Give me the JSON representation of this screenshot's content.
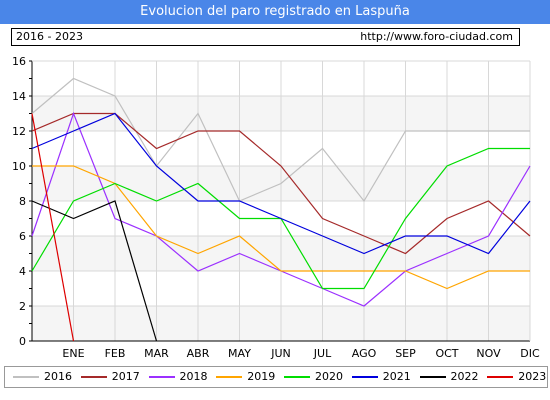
{
  "header": {
    "title": "Evolucion del paro registrado en Laspuña",
    "range": "2016 - 2023",
    "url": "http://www.foro-ciudad.com"
  },
  "chart_data": {
    "type": "line",
    "title": "Evolucion del paro registrado en Laspuña",
    "xlabel": "",
    "ylabel": "",
    "categories": [
      "",
      "ENE",
      "FEB",
      "MAR",
      "ABR",
      "MAY",
      "JUN",
      "JUL",
      "AGO",
      "SEP",
      "OCT",
      "NOV",
      "DIC"
    ],
    "y_ticks": [
      0,
      2,
      4,
      6,
      8,
      10,
      12,
      14,
      16
    ],
    "ylim": [
      0,
      16
    ],
    "grid": true,
    "legend_position": "bottom",
    "series": [
      {
        "name": "2016",
        "color": "#c0c0c0",
        "values": [
          13,
          15,
          14,
          10,
          13,
          8,
          9,
          11,
          8,
          12,
          12,
          12,
          12
        ]
      },
      {
        "name": "2017",
        "color": "#a52a2a",
        "values": [
          12,
          13,
          13,
          11,
          12,
          12,
          10,
          7,
          6,
          5,
          7,
          8,
          6
        ]
      },
      {
        "name": "2018",
        "color": "#9b30ff",
        "values": [
          6,
          13,
          7,
          6,
          4,
          5,
          4,
          3,
          2,
          4,
          5,
          6,
          10
        ]
      },
      {
        "name": "2019",
        "color": "#ffa500",
        "values": [
          10,
          10,
          9,
          6,
          5,
          6,
          4,
          4,
          4,
          4,
          3,
          4,
          4
        ]
      },
      {
        "name": "2020",
        "color": "#00dd00",
        "values": [
          4,
          8,
          9,
          8,
          9,
          7,
          7,
          3,
          3,
          7,
          10,
          11,
          11
        ]
      },
      {
        "name": "2021",
        "color": "#0000dd",
        "values": [
          11,
          12,
          13,
          10,
          8,
          8,
          7,
          6,
          5,
          6,
          6,
          5,
          8
        ]
      },
      {
        "name": "2022",
        "color": "#000000",
        "values": [
          8,
          7,
          8,
          0,
          null,
          null,
          null,
          null,
          null,
          null,
          null,
          null,
          null
        ]
      },
      {
        "name": "2023",
        "color": "#dd0000",
        "values": [
          13,
          0,
          null,
          null,
          null,
          null,
          null,
          null,
          null,
          null,
          null,
          null,
          null
        ]
      }
    ]
  }
}
